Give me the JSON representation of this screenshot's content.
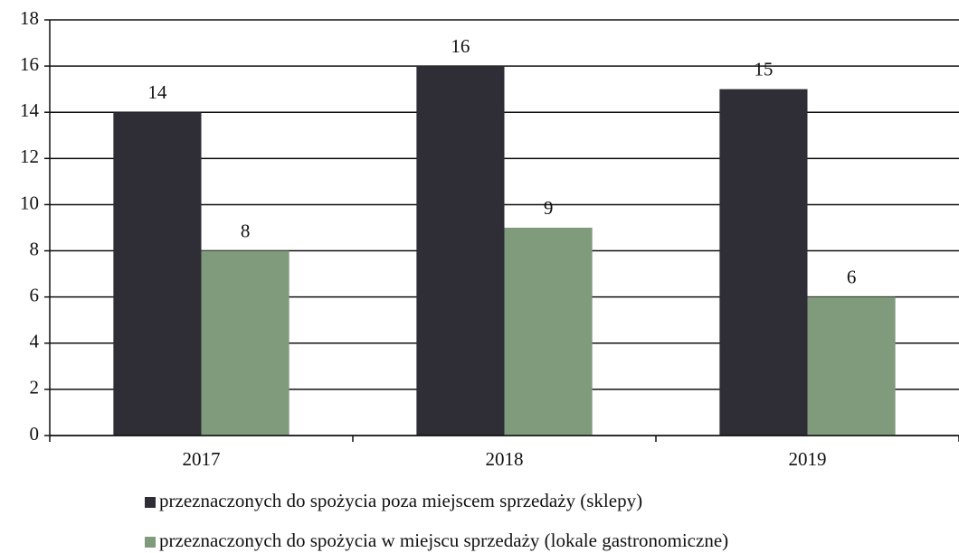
{
  "chart_data": {
    "type": "bar",
    "categories": [
      "2017",
      "2018",
      "2019"
    ],
    "series": [
      {
        "name": "przeznaczonych do spożycia poza miejscem sprzedaży (sklepy)",
        "color": "#2f2e37",
        "values": [
          14,
          16,
          15
        ]
      },
      {
        "name": "przeznaczonych do spożycia w miejscu sprzedaży (lokale gastronomiczne)",
        "color": "#809a7c",
        "values": [
          8,
          9,
          6
        ]
      }
    ],
    "ylim": [
      0,
      18
    ],
    "yticks": [
      0,
      2,
      4,
      6,
      8,
      10,
      12,
      14,
      16,
      18
    ],
    "grid": true,
    "legend": "bottom"
  }
}
